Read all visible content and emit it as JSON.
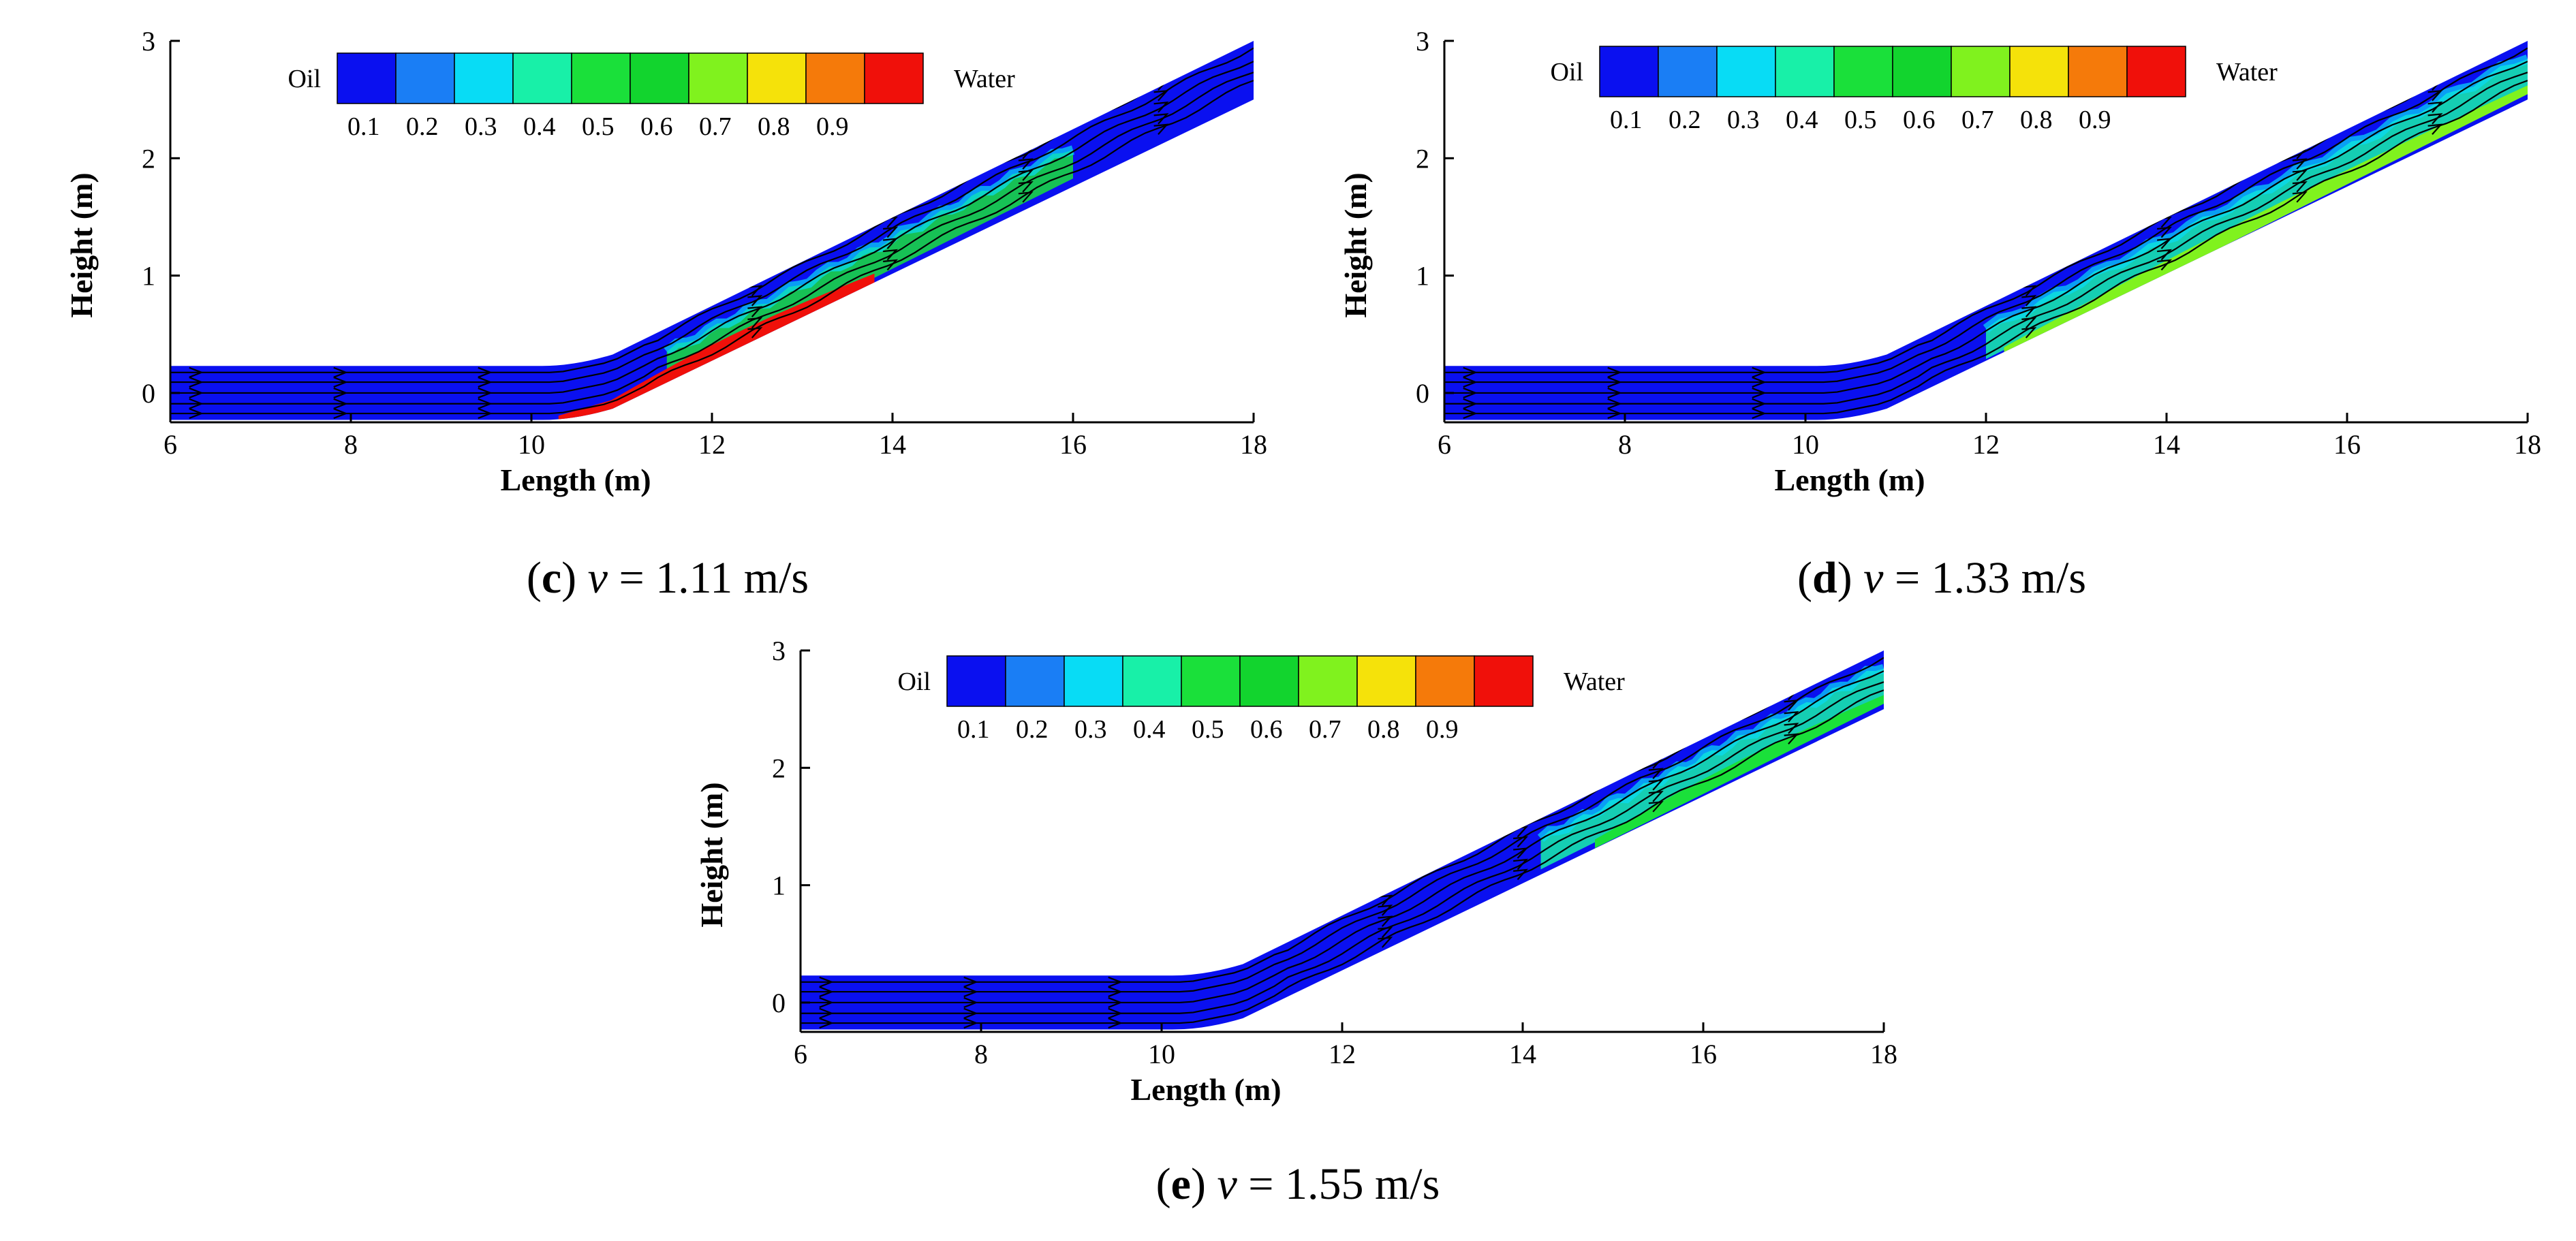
{
  "colorbar": {
    "left_label": "Oil",
    "right_label": "Water",
    "colors": [
      "#0a10f0",
      "#1a7ef5",
      "#08dcf5",
      "#18f0a8",
      "#1ae03a",
      "#12d42e",
      "#80f21e",
      "#f5e20a",
      "#f57a0a",
      "#f0100a"
    ],
    "ticks": [
      "0.1",
      "0.2",
      "0.3",
      "0.4",
      "0.5",
      "0.6",
      "0.7",
      "0.8",
      "0.9"
    ]
  },
  "chart_data": [
    {
      "type": "heatmap",
      "panel_label": "c",
      "caption_var": "v",
      "caption_rest": " = 1.11 m/s",
      "xlabel": "Length (m)",
      "ylabel": "Height (m)",
      "xlim": [
        6,
        18
      ],
      "ylim": [
        -0.25,
        3
      ],
      "xticks": [
        "6",
        "8",
        "10",
        "12",
        "14",
        "16",
        "18"
      ],
      "yticks": [
        "0",
        "1",
        "2",
        "3"
      ],
      "pipe": {
        "horizontal_end_x": 10.3,
        "top_y": 0.23,
        "bottom_y": -0.23,
        "incline_end_top_y": 3.0,
        "incline_end_bottom_y": 2.5
      },
      "water_band": {
        "from_x": 10.3,
        "to_x": 13.8,
        "color": "#f0100a",
        "max_thickness_m": 0.12
      },
      "mixing_zone": {
        "from_x": 11.5,
        "to_x": 16.0,
        "color": "#1ae03a"
      }
    },
    {
      "type": "heatmap",
      "panel_label": "d",
      "caption_var": "v",
      "caption_rest": " = 1.33 m/s",
      "xlabel": "Length (m)",
      "ylabel": "Height (m)",
      "xlim": [
        6,
        18
      ],
      "ylim": [
        -0.25,
        3
      ],
      "xticks": [
        "6",
        "8",
        "10",
        "12",
        "14",
        "16",
        "18"
      ],
      "yticks": [
        "0",
        "1",
        "2",
        "3"
      ],
      "pipe": {
        "horizontal_end_x": 10.3,
        "top_y": 0.23,
        "bottom_y": -0.23,
        "incline_end_top_y": 3.0,
        "incline_end_bottom_y": 2.5
      },
      "water_band": {
        "from_x": 12.2,
        "to_x": 18.0,
        "color": "#80f21e",
        "max_thickness_m": 0.08
      },
      "mixing_zone": {
        "from_x": 12.0,
        "to_x": 18.0,
        "color": "#18f0a8"
      }
    },
    {
      "type": "heatmap",
      "panel_label": "e",
      "caption_var": "v",
      "caption_rest": " = 1.55 m/s",
      "xlabel": "Length (m)",
      "ylabel": "Height (m)",
      "xlim": [
        6,
        18
      ],
      "ylim": [
        -0.25,
        3
      ],
      "xticks": [
        "6",
        "8",
        "10",
        "12",
        "14",
        "16",
        "18"
      ],
      "yticks": [
        "0",
        "1",
        "2",
        "3"
      ],
      "pipe": {
        "horizontal_end_x": 10.3,
        "top_y": 0.23,
        "bottom_y": -0.23,
        "incline_end_top_y": 3.0,
        "incline_end_bottom_y": 2.5
      },
      "water_band": {
        "from_x": 14.8,
        "to_x": 18.0,
        "color": "#1ae03a",
        "max_thickness_m": 0.08
      },
      "mixing_zone": {
        "from_x": 14.2,
        "to_x": 18.0,
        "color": "#18f0a8"
      }
    }
  ]
}
